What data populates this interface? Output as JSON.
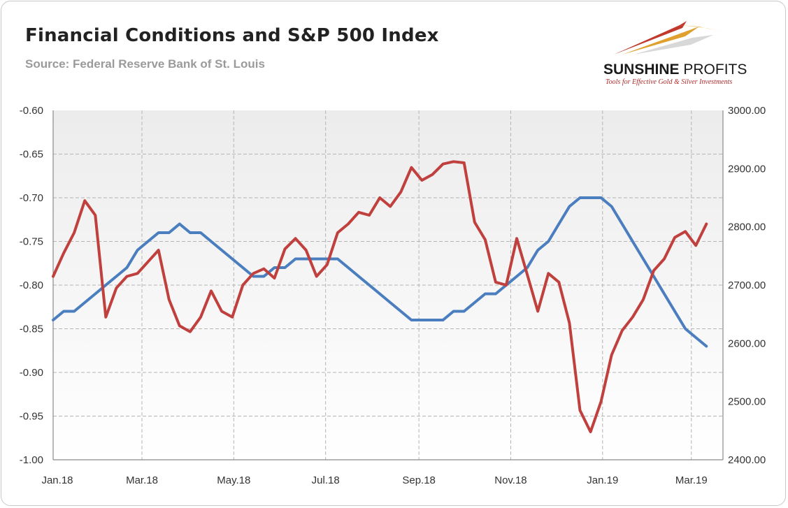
{
  "header": {
    "title": "Financial Conditions and S&P 500 Index",
    "subtitle": "Source: Federal Reserve Bank of St. Louis"
  },
  "logo": {
    "name_bold": "SUNSHINE",
    "name_light": " PROFITS",
    "tagline": "Tools for Effective Gold & Silver Investments"
  },
  "chart_data": {
    "type": "line",
    "title": "Financial Conditions and S&P 500 Index",
    "subtitle": "Source: Federal Reserve Bank of St. Louis",
    "x_tick_labels": [
      "Jan.18",
      "Mar.18",
      "May.18",
      "Jul.18",
      "Sep.18",
      "Nov.18",
      "Jan.19",
      "Mar.19"
    ],
    "x_range": [
      "2018-01-01",
      "2019-03-22"
    ],
    "y_left": {
      "ylim": [
        -1.0,
        -0.6
      ],
      "ticks": [
        "-0.60",
        "-0.65",
        "-0.70",
        "-0.75",
        "-0.80",
        "-0.85",
        "-0.90",
        "-0.95",
        "-1.00"
      ]
    },
    "y_right": {
      "ylim": [
        2400,
        3000
      ],
      "ticks": [
        "3000.00",
        "2900.00",
        "2800.00",
        "2700.00",
        "2600.00",
        "2500.00",
        "2400.00"
      ]
    },
    "grid": true,
    "series": [
      {
        "color": "#4a7ebf",
        "axis": "left",
        "points": [
          [
            "2018-01-01",
            -0.84
          ],
          [
            "2018-01-08",
            -0.83
          ],
          [
            "2018-01-15",
            -0.83
          ],
          [
            "2018-01-22",
            -0.82
          ],
          [
            "2018-01-29",
            -0.81
          ],
          [
            "2018-02-05",
            -0.8
          ],
          [
            "2018-02-12",
            -0.79
          ],
          [
            "2018-02-19",
            -0.78
          ],
          [
            "2018-02-26",
            -0.76
          ],
          [
            "2018-03-05",
            -0.75
          ],
          [
            "2018-03-12",
            -0.74
          ],
          [
            "2018-03-19",
            -0.74
          ],
          [
            "2018-03-26",
            -0.73
          ],
          [
            "2018-04-02",
            -0.74
          ],
          [
            "2018-04-09",
            -0.74
          ],
          [
            "2018-04-16",
            -0.75
          ],
          [
            "2018-04-23",
            -0.76
          ],
          [
            "2018-04-30",
            -0.77
          ],
          [
            "2018-05-07",
            -0.78
          ],
          [
            "2018-05-14",
            -0.79
          ],
          [
            "2018-05-21",
            -0.79
          ],
          [
            "2018-05-28",
            -0.78
          ],
          [
            "2018-06-04",
            -0.78
          ],
          [
            "2018-06-11",
            -0.77
          ],
          [
            "2018-06-18",
            -0.77
          ],
          [
            "2018-06-25",
            -0.77
          ],
          [
            "2018-07-02",
            -0.77
          ],
          [
            "2018-07-09",
            -0.77
          ],
          [
            "2018-07-16",
            -0.78
          ],
          [
            "2018-07-23",
            -0.79
          ],
          [
            "2018-07-30",
            -0.8
          ],
          [
            "2018-08-06",
            -0.81
          ],
          [
            "2018-08-13",
            -0.82
          ],
          [
            "2018-08-20",
            -0.83
          ],
          [
            "2018-08-27",
            -0.84
          ],
          [
            "2018-09-03",
            -0.84
          ],
          [
            "2018-09-10",
            -0.84
          ],
          [
            "2018-09-17",
            -0.84
          ],
          [
            "2018-09-24",
            -0.83
          ],
          [
            "2018-10-01",
            -0.83
          ],
          [
            "2018-10-08",
            -0.82
          ],
          [
            "2018-10-15",
            -0.81
          ],
          [
            "2018-10-22",
            -0.81
          ],
          [
            "2018-10-29",
            -0.8
          ],
          [
            "2018-11-05",
            -0.79
          ],
          [
            "2018-11-12",
            -0.78
          ],
          [
            "2018-11-19",
            -0.76
          ],
          [
            "2018-11-26",
            -0.75
          ],
          [
            "2018-12-03",
            -0.73
          ],
          [
            "2018-12-10",
            -0.71
          ],
          [
            "2018-12-17",
            -0.7
          ],
          [
            "2018-12-24",
            -0.7
          ],
          [
            "2018-12-31",
            -0.7
          ],
          [
            "2019-01-07",
            -0.71
          ],
          [
            "2019-01-14",
            -0.73
          ],
          [
            "2019-01-21",
            -0.75
          ],
          [
            "2019-01-28",
            -0.77
          ],
          [
            "2019-02-04",
            -0.79
          ],
          [
            "2019-02-11",
            -0.81
          ],
          [
            "2019-02-18",
            -0.83
          ],
          [
            "2019-02-25",
            -0.85
          ],
          [
            "2019-03-04",
            -0.86
          ],
          [
            "2019-03-11",
            -0.87
          ]
        ]
      },
      {
        "color": "#c0403e",
        "axis": "right",
        "points": [
          [
            "2018-01-01",
            2715
          ],
          [
            "2018-01-08",
            2755
          ],
          [
            "2018-01-15",
            2790
          ],
          [
            "2018-01-22",
            2845
          ],
          [
            "2018-01-29",
            2820
          ],
          [
            "2018-02-05",
            2645
          ],
          [
            "2018-02-12",
            2695
          ],
          [
            "2018-02-19",
            2715
          ],
          [
            "2018-02-26",
            2720
          ],
          [
            "2018-03-05",
            2740
          ],
          [
            "2018-03-12",
            2760
          ],
          [
            "2018-03-19",
            2675
          ],
          [
            "2018-03-26",
            2630
          ],
          [
            "2018-04-02",
            2620
          ],
          [
            "2018-04-09",
            2645
          ],
          [
            "2018-04-16",
            2690
          ],
          [
            "2018-04-23",
            2655
          ],
          [
            "2018-04-30",
            2645
          ],
          [
            "2018-05-07",
            2700
          ],
          [
            "2018-05-14",
            2720
          ],
          [
            "2018-05-21",
            2728
          ],
          [
            "2018-05-28",
            2712
          ],
          [
            "2018-06-04",
            2762
          ],
          [
            "2018-06-11",
            2780
          ],
          [
            "2018-06-18",
            2760
          ],
          [
            "2018-06-25",
            2715
          ],
          [
            "2018-07-02",
            2735
          ],
          [
            "2018-07-09",
            2790
          ],
          [
            "2018-07-16",
            2805
          ],
          [
            "2018-07-23",
            2825
          ],
          [
            "2018-07-30",
            2820
          ],
          [
            "2018-08-06",
            2850
          ],
          [
            "2018-08-13",
            2835
          ],
          [
            "2018-08-20",
            2860
          ],
          [
            "2018-08-27",
            2902
          ],
          [
            "2018-09-03",
            2880
          ],
          [
            "2018-09-10",
            2890
          ],
          [
            "2018-09-17",
            2908
          ],
          [
            "2018-09-24",
            2912
          ],
          [
            "2018-10-01",
            2910
          ],
          [
            "2018-10-08",
            2808
          ],
          [
            "2018-10-15",
            2778
          ],
          [
            "2018-10-22",
            2705
          ],
          [
            "2018-10-29",
            2700
          ],
          [
            "2018-11-05",
            2780
          ],
          [
            "2018-11-12",
            2718
          ],
          [
            "2018-11-19",
            2655
          ],
          [
            "2018-11-26",
            2720
          ],
          [
            "2018-12-03",
            2705
          ],
          [
            "2018-12-10",
            2635
          ],
          [
            "2018-12-17",
            2485
          ],
          [
            "2018-12-24",
            2448
          ],
          [
            "2018-12-31",
            2500
          ],
          [
            "2019-01-07",
            2580
          ],
          [
            "2019-01-14",
            2622
          ],
          [
            "2019-01-21",
            2645
          ],
          [
            "2019-01-28",
            2675
          ],
          [
            "2019-02-04",
            2725
          ],
          [
            "2019-02-11",
            2745
          ],
          [
            "2019-02-18",
            2782
          ],
          [
            "2019-02-25",
            2792
          ],
          [
            "2019-03-04",
            2768
          ],
          [
            "2019-03-11",
            2805
          ]
        ]
      }
    ]
  }
}
